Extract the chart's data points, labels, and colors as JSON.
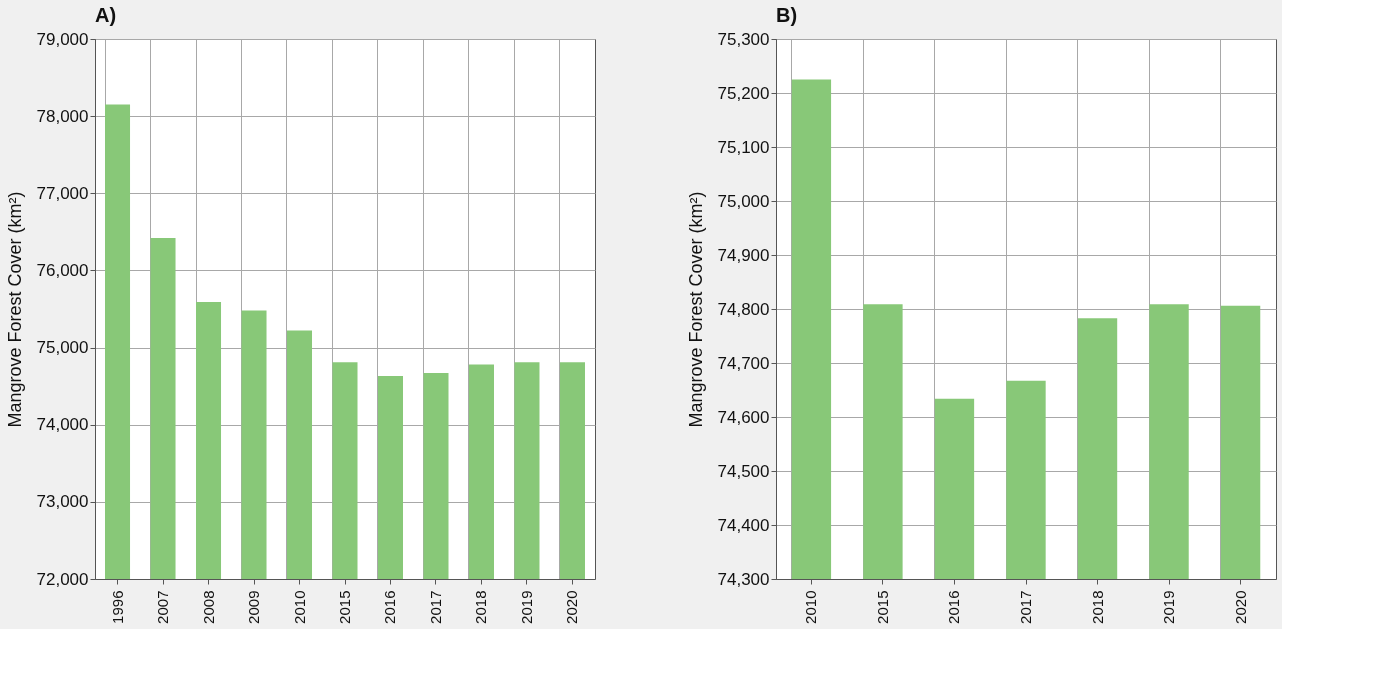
{
  "chart_data": [
    {
      "type": "bar",
      "title": "A)",
      "ylabel": "Mangrove Forest Cover (km²)",
      "categories": [
        "1996",
        "2007",
        "2008",
        "2009",
        "2010",
        "2015",
        "2016",
        "2017",
        "2018",
        "2019",
        "2020"
      ],
      "values": [
        78150,
        76420,
        75590,
        75480,
        75220,
        74810,
        74630,
        74670,
        74780,
        74810,
        74810
      ],
      "color": "#88c878",
      "ylim": [
        72000,
        79000
      ],
      "yticks": [
        {
          "value": 72000,
          "label": "72,000"
        },
        {
          "value": 73000,
          "label": "73,000"
        },
        {
          "value": 74000,
          "label": "74,000"
        },
        {
          "value": 75000,
          "label": "75,000"
        },
        {
          "value": 76000,
          "label": "76,000"
        },
        {
          "value": 77000,
          "label": "77,000"
        },
        {
          "value": 78000,
          "label": "78,000"
        },
        {
          "value": 79000,
          "label": "79,000"
        }
      ],
      "grid": true
    },
    {
      "type": "bar",
      "title": "B)",
      "ylabel": "Mangrove Forest Cover (km²)",
      "categories": [
        "2010",
        "2015",
        "2016",
        "2017",
        "2018",
        "2019",
        "2020"
      ],
      "values": [
        75225,
        74809,
        74634,
        74667,
        74783,
        74809,
        74806
      ],
      "color": "#88c878",
      "ylim": [
        74300,
        75300
      ],
      "yticks": [
        {
          "value": 74300,
          "label": "74,300"
        },
        {
          "value": 74400,
          "label": "74,400"
        },
        {
          "value": 74500,
          "label": "74,500"
        },
        {
          "value": 74600,
          "label": "74,600"
        },
        {
          "value": 74700,
          "label": "74,700"
        },
        {
          "value": 74800,
          "label": "74,800"
        },
        {
          "value": 74900,
          "label": "74,900"
        },
        {
          "value": 75000,
          "label": "75,000"
        },
        {
          "value": 75100,
          "label": "75,100"
        },
        {
          "value": 75200,
          "label": "75,200"
        },
        {
          "value": 75300,
          "label": "75,300"
        }
      ],
      "grid": true
    }
  ]
}
